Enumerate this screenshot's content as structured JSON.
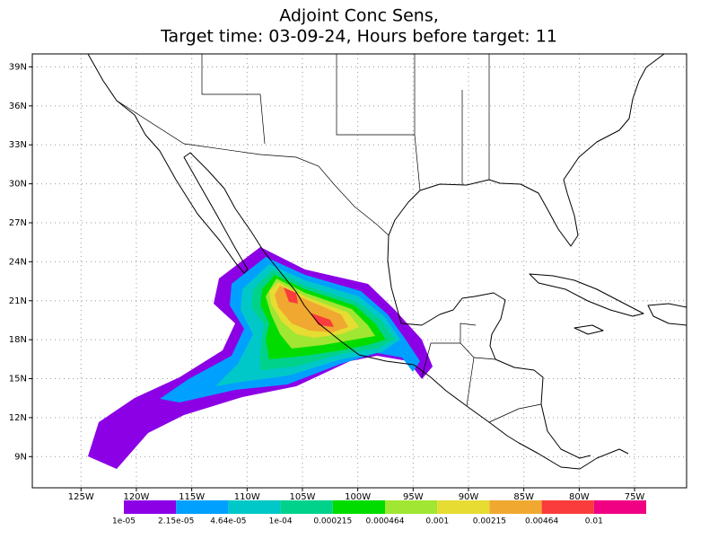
{
  "chart_data": {
    "type": "map",
    "title": "Adjoint Conc Sens,",
    "subtitle": "Target time: 03-09-24, Hours before target: 11",
    "xlim": [
      -129.4,
      -70.3
    ],
    "ylim": [
      6.6,
      40
    ],
    "grid": true,
    "xticks": [
      {
        "value": -125,
        "label": "125W"
      },
      {
        "value": -120,
        "label": "120W"
      },
      {
        "value": -115,
        "label": "115W"
      },
      {
        "value": -110,
        "label": "110W"
      },
      {
        "value": -105,
        "label": "105W"
      },
      {
        "value": -100,
        "label": "100W"
      },
      {
        "value": -95,
        "label": "95W"
      },
      {
        "value": -90,
        "label": "90W"
      },
      {
        "value": -85,
        "label": "85W"
      },
      {
        "value": -80,
        "label": "80W"
      },
      {
        "value": -75,
        "label": "75W"
      }
    ],
    "yticks": [
      {
        "value": 9,
        "label": "9N"
      },
      {
        "value": 12,
        "label": "12N"
      },
      {
        "value": 15,
        "label": "15N"
      },
      {
        "value": 18,
        "label": "18N"
      },
      {
        "value": 21,
        "label": "21N"
      },
      {
        "value": 24,
        "label": "24N"
      },
      {
        "value": 27,
        "label": "27N"
      },
      {
        "value": 30,
        "label": "30N"
      },
      {
        "value": 33,
        "label": "33N"
      },
      {
        "value": 36,
        "label": "36N"
      },
      {
        "value": 39,
        "label": "39N"
      }
    ],
    "colorbar": {
      "levels": [
        {
          "value": 1e-05,
          "label": "1e-05"
        },
        {
          "value": 2.15e-05,
          "label": "2.15e-05"
        },
        {
          "value": 4.64e-05,
          "label": "4.64e-05"
        },
        {
          "value": 0.0001,
          "label": "1e-04"
        },
        0.000215,
        0.000464,
        0.001,
        0.00215,
        0.00464,
        0.01
      ],
      "colors": [
        "#8c00e6",
        "#00a0ff",
        "#00c8c8",
        "#00d28c",
        "#00dc00",
        "#a0e632",
        "#e6dc32",
        "#f0a830",
        "#fa3c3c",
        "#f00082"
      ]
    }
  }
}
